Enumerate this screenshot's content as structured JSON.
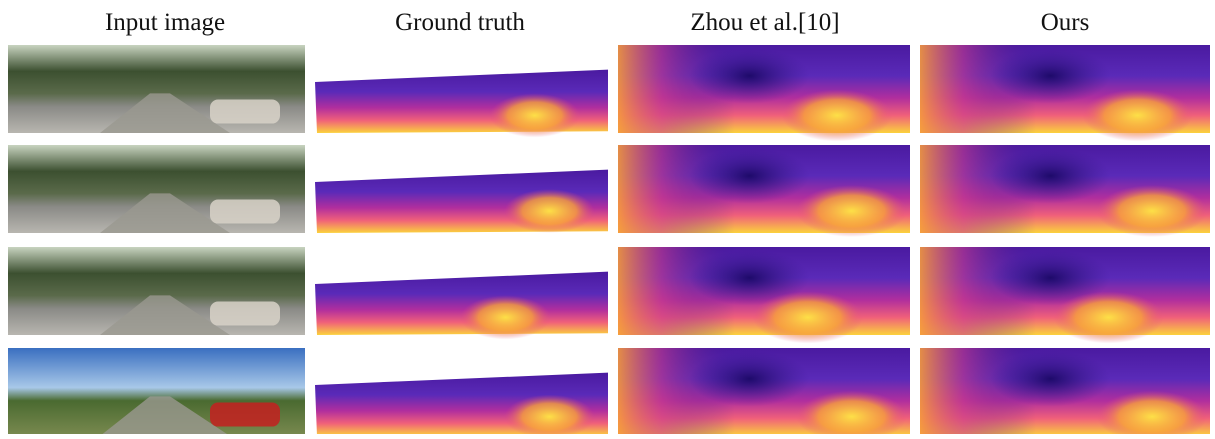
{
  "header": {
    "columns": [
      "Input image",
      "Ground truth",
      "Zhou et al.[10]",
      "Ours"
    ]
  }
}
